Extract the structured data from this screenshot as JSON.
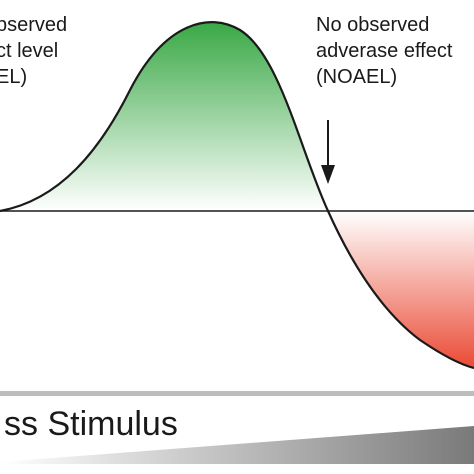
{
  "labels": {
    "loael": [
      "bserved",
      "ct level",
      "EL)"
    ],
    "noael": [
      "No observed",
      "adverase effect",
      "(NOAEL)"
    ]
  },
  "axis": {
    "title": "ss Stimulus"
  },
  "colors": {
    "benefit_top": "#39a845",
    "benefit_bottom": "#ffffff",
    "harm_top": "#ffffff",
    "harm_bottom": "#ea4a35",
    "line": "#1a1a1a",
    "stimulus_wedge_start": "#ffffff",
    "stimulus_wedge_end": "#7a7a7a",
    "axis_bar": "#bdbdbd"
  },
  "icons": {
    "noael_marker": "down-arrow-icon"
  }
}
